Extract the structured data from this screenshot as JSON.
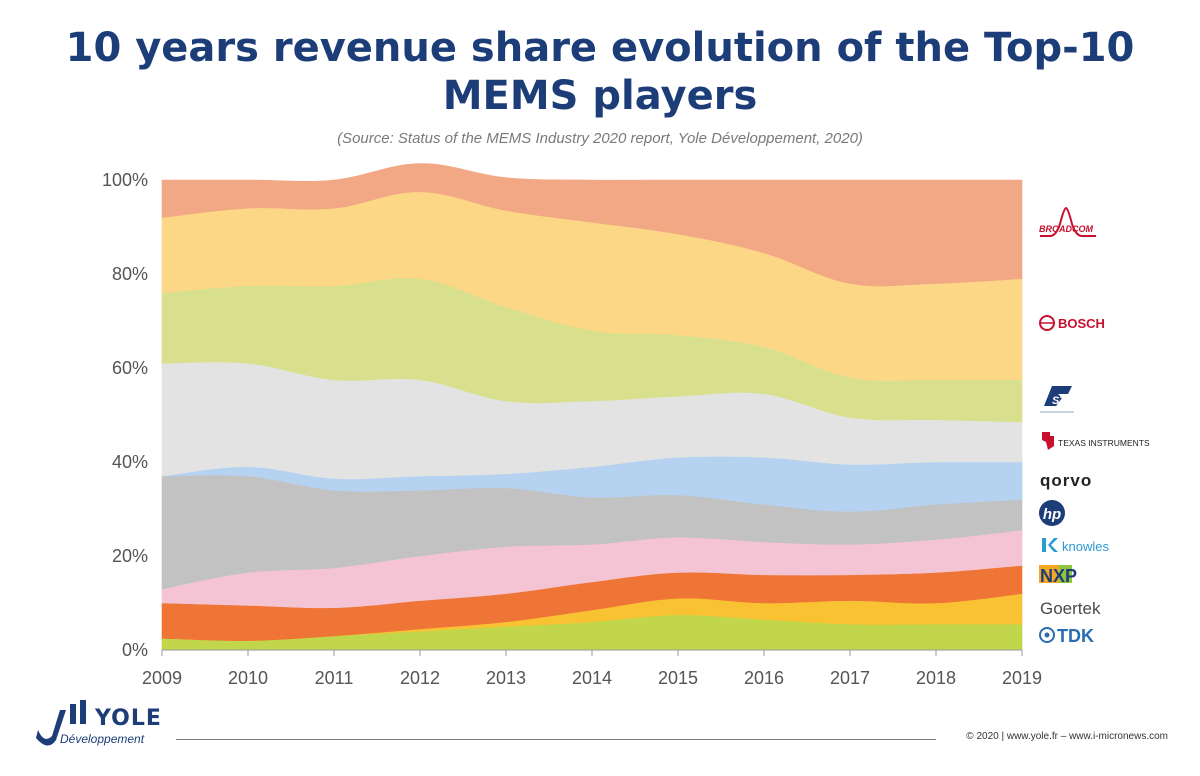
{
  "title_line1": "10 years revenue share evolution of the Top-10",
  "title_line2": "MEMS players",
  "subtitle": "(Source: Status of the MEMS Industry 2020 report, Yole Développement, 2020)",
  "footer": {
    "copyright": "© 2020 | www.yole.fr – www.i-micronews.com",
    "brand_name": "YOLE",
    "brand_sub": "Développement"
  },
  "chart_data": {
    "type": "area",
    "stacked": true,
    "x": [
      2009,
      2010,
      2011,
      2012,
      2013,
      2014,
      2015,
      2016,
      2017,
      2018,
      2019
    ],
    "y_ticks": [
      "0%",
      "20%",
      "40%",
      "60%",
      "80%",
      "100%"
    ],
    "ylim": [
      0,
      100
    ],
    "grid": false,
    "legend_position": "right",
    "legend": [
      "BROADCOM",
      "BOSCH",
      "ST",
      "TEXAS INSTRUMENTS",
      "qorvo",
      "hp",
      "knowles",
      "NXP",
      "Goertek",
      "TDK"
    ],
    "series": [
      {
        "name": "TDK",
        "color": "#c1d64a",
        "values": [
          2.5,
          2,
          3,
          4,
          5,
          6,
          7.5,
          6.5,
          5.5,
          5.5,
          5.5
        ]
      },
      {
        "name": "Goertek",
        "color": "#f9c233",
        "values": [
          0,
          0,
          0,
          0.5,
          1,
          2.5,
          3.5,
          3.5,
          5,
          4.5,
          6.5
        ]
      },
      {
        "name": "NXP",
        "color": "#ee7536",
        "values": [
          7.5,
          7.5,
          6,
          6,
          6,
          6,
          5.5,
          6,
          5.5,
          6.5,
          6
        ]
      },
      {
        "name": "knowles",
        "color": "#f4c4d4",
        "values": [
          3,
          7,
          8.5,
          9.5,
          10,
          8,
          7.5,
          7,
          6.5,
          7,
          7.5
        ]
      },
      {
        "name": "hp",
        "color": "#c2c2c2",
        "values": [
          24,
          20.5,
          16.5,
          14,
          12.5,
          10,
          9,
          8,
          7,
          7.5,
          6.5
        ]
      },
      {
        "name": "qorvo",
        "color": "#b5d2f0",
        "values": [
          0,
          2,
          2.5,
          3,
          3,
          6.5,
          8,
          10,
          10,
          9,
          8
        ]
      },
      {
        "name": "TEXAS INSTRUMENTS",
        "color": "#e3e3e3",
        "values": [
          24,
          22,
          21,
          20.5,
          15.5,
          14,
          13,
          13.5,
          10,
          9,
          8.5
        ]
      },
      {
        "name": "ST",
        "color": "#d8e08e",
        "values": [
          15,
          16.5,
          20,
          21.5,
          20,
          15,
          13,
          10,
          8.5,
          8.5,
          9
        ]
      },
      {
        "name": "BOSCH",
        "color": "#fcd886",
        "values": [
          16,
          16.5,
          16.5,
          18.5,
          20.5,
          23,
          21.5,
          20,
          20,
          20.5,
          21.5
        ]
      },
      {
        "name": "BROADCOM",
        "color": "#f2a884",
        "values": [
          8,
          6,
          6,
          6,
          7,
          9,
          11.5,
          15.5,
          22,
          22,
          21
        ]
      }
    ]
  }
}
